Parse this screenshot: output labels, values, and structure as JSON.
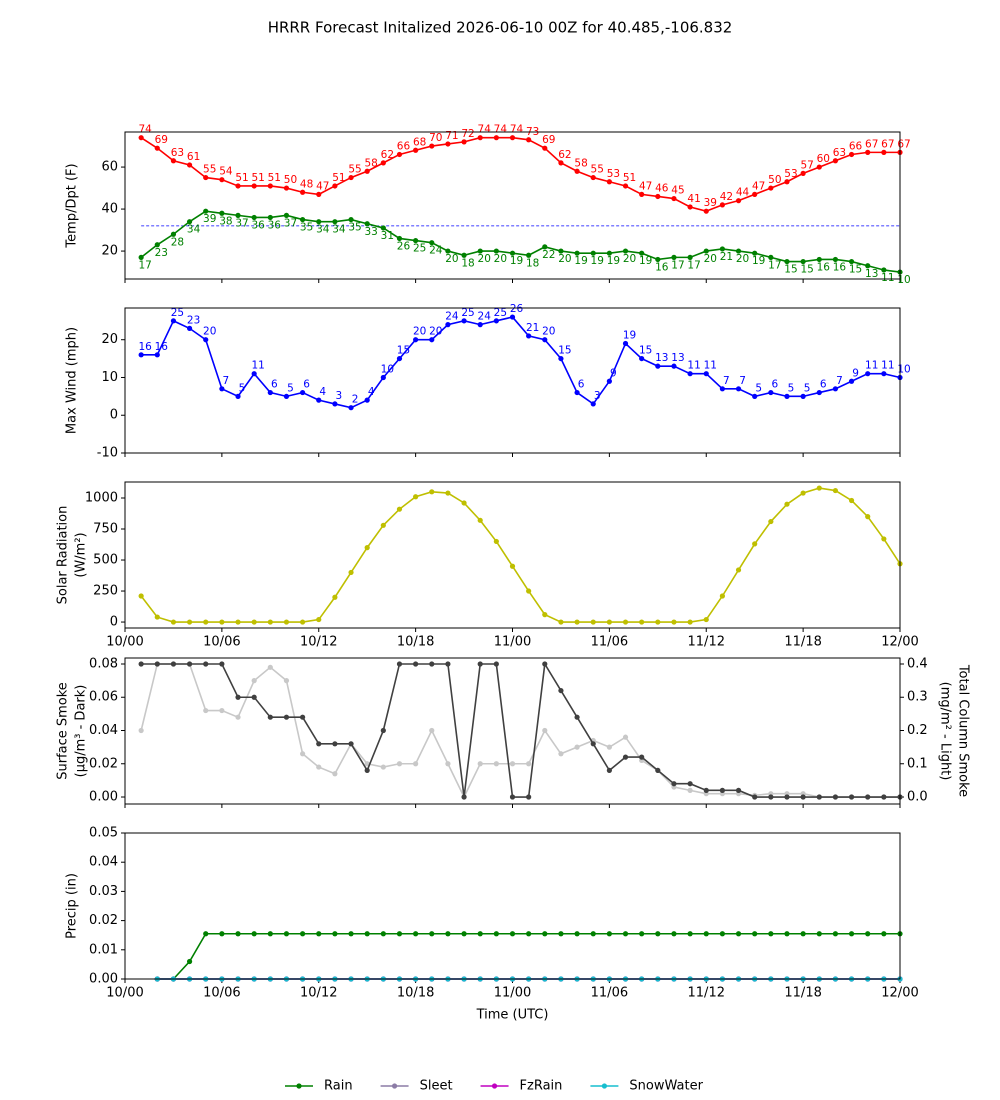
{
  "chart_data": [
    {
      "type": "line",
      "title": "HRRR Forecast Initalized 2026-06-10 00Z for 40.485,-106.832",
      "ylabel": [
        "Temp/Dpt (F)"
      ],
      "x": [
        1,
        2,
        3,
        4,
        5,
        6,
        7,
        8,
        9,
        10,
        11,
        12,
        13,
        14,
        15,
        16,
        17,
        18,
        19,
        20,
        21,
        22,
        23,
        24,
        25,
        26,
        27,
        28,
        29,
        30,
        31,
        32,
        33,
        34,
        35,
        36,
        37,
        38,
        39,
        40,
        41,
        42,
        43,
        44,
        45,
        46,
        47,
        48
      ],
      "xlim": [
        0,
        48
      ],
      "xticks": [
        0,
        6,
        12,
        18,
        24,
        30,
        36,
        42,
        48
      ],
      "ylim": [
        6.7,
        76.7
      ],
      "yticks": [
        20,
        40,
        60
      ],
      "data_labels": true,
      "hline": {
        "value": 32,
        "color": "#0000ff",
        "style": "dashed"
      },
      "series": [
        {
          "name": "Temp",
          "color": "#ff0000",
          "values": [
            74,
            69,
            63,
            61,
            55,
            54,
            51,
            51,
            51,
            50,
            48,
            47,
            51,
            55,
            58,
            62,
            66,
            68,
            70,
            71,
            72,
            74,
            74,
            74,
            73,
            69,
            62,
            58,
            55,
            53,
            51,
            47,
            46,
            45,
            41,
            39,
            42,
            44,
            47,
            50,
            53,
            57,
            60,
            63,
            66,
            67,
            67,
            67
          ]
        },
        {
          "name": "Dpt",
          "color": "#008000",
          "values": [
            17,
            23,
            28,
            34,
            39,
            38,
            37,
            36,
            36,
            37,
            35,
            34,
            34,
            35,
            33,
            31,
            26,
            25,
            24,
            20,
            18,
            20,
            20,
            19,
            18,
            22,
            20,
            19,
            19,
            19,
            20,
            19,
            16,
            17,
            17,
            20,
            21,
            20,
            19,
            17,
            15,
            15,
            16,
            16,
            15,
            13,
            11,
            10
          ]
        }
      ]
    },
    {
      "type": "line",
      "ylabel": [
        "Max Wind (mph)"
      ],
      "x": [
        1,
        2,
        3,
        4,
        5,
        6,
        7,
        8,
        9,
        10,
        11,
        12,
        13,
        14,
        15,
        16,
        17,
        18,
        19,
        20,
        21,
        22,
        23,
        24,
        25,
        26,
        27,
        28,
        29,
        30,
        31,
        32,
        33,
        34,
        35,
        36,
        37,
        38,
        39,
        40,
        41,
        42,
        43,
        44,
        45,
        46,
        47,
        48
      ],
      "xlim": [
        0,
        48
      ],
      "xticks": [
        0,
        6,
        12,
        18,
        24,
        30,
        36,
        42,
        48
      ],
      "ylim": [
        -10,
        28.4
      ],
      "yticks": [
        -10,
        0,
        10,
        20
      ],
      "data_labels": true,
      "series": [
        {
          "name": "Max Wind",
          "color": "#0000ff",
          "values": [
            16,
            16,
            25,
            23,
            20,
            7,
            5,
            11,
            6,
            5,
            6,
            4,
            3,
            2,
            4,
            10,
            15,
            20,
            20,
            24,
            25,
            24,
            25,
            26,
            21,
            20,
            15,
            6,
            3,
            9,
            19,
            15,
            13,
            13,
            11,
            11,
            7,
            7,
            5,
            6,
            5,
            5,
            6,
            7,
            9,
            11,
            11,
            10
          ]
        }
      ]
    },
    {
      "type": "line",
      "ylabel": [
        "Solar Radiation",
        "(W/m²)"
      ],
      "x": [
        1,
        2,
        3,
        4,
        5,
        6,
        7,
        8,
        9,
        10,
        11,
        12,
        13,
        14,
        15,
        16,
        17,
        18,
        19,
        20,
        21,
        22,
        23,
        24,
        25,
        26,
        27,
        28,
        29,
        30,
        31,
        32,
        33,
        34,
        35,
        36,
        37,
        38,
        39,
        40,
        41,
        42,
        43,
        44,
        45,
        46,
        47,
        48
      ],
      "xlim": [
        0,
        48
      ],
      "xticks": [
        {
          "value": 0,
          "label": "10/00"
        },
        {
          "value": 6,
          "label": "10/06"
        },
        {
          "value": 12,
          "label": "10/12"
        },
        {
          "value": 18,
          "label": "10/18"
        },
        {
          "value": 24,
          "label": "11/00"
        },
        {
          "value": 30,
          "label": "11/06"
        },
        {
          "value": 36,
          "label": "11/12"
        },
        {
          "value": 42,
          "label": "11/18"
        },
        {
          "value": 48,
          "label": "12/00"
        }
      ],
      "ylim": [
        -48,
        1129
      ],
      "yticks": [
        0,
        250,
        500,
        750,
        1000
      ],
      "series": [
        {
          "name": "Solar",
          "color": "#bfbf00",
          "values": [
            210,
            40,
            0,
            0,
            0,
            0,
            0,
            0,
            0,
            0,
            0,
            20,
            200,
            400,
            600,
            780,
            910,
            1010,
            1050,
            1040,
            960,
            820,
            650,
            450,
            250,
            60,
            0,
            0,
            0,
            0,
            0,
            0,
            0,
            0,
            0,
            20,
            210,
            420,
            630,
            810,
            950,
            1040,
            1080,
            1060,
            980,
            850,
            670,
            470
          ]
        }
      ]
    },
    {
      "type": "line",
      "ylabel": [
        "Surface Smoke",
        "(μg/m³ - Dark)"
      ],
      "y2label": [
        "Total Column Smoke",
        "(mg/m² - Light)"
      ],
      "x": [
        1,
        2,
        3,
        4,
        5,
        6,
        7,
        8,
        9,
        10,
        11,
        12,
        13,
        14,
        15,
        16,
        17,
        18,
        19,
        20,
        21,
        22,
        23,
        24,
        25,
        26,
        27,
        28,
        29,
        30,
        31,
        32,
        33,
        34,
        35,
        36,
        37,
        38,
        39,
        40,
        41,
        42,
        43,
        44,
        45,
        46,
        47,
        48
      ],
      "xlim": [
        0,
        48
      ],
      "xticks": [
        0,
        6,
        12,
        18,
        24,
        30,
        36,
        42,
        48
      ],
      "ylim": [
        -0.0042,
        0.0836
      ],
      "yticks": [
        {
          "value": 0,
          "label": "0.00"
        },
        {
          "value": 0.02,
          "label": "0.02"
        },
        {
          "value": 0.04,
          "label": "0.04"
        },
        {
          "value": 0.06,
          "label": "0.06"
        },
        {
          "value": 0.08,
          "label": "0.08"
        }
      ],
      "y2lim": [
        -0.021,
        0.418
      ],
      "y2ticks": [
        {
          "value": 0,
          "label": "0.0"
        },
        0.1,
        0.2,
        0.3,
        0.4
      ],
      "series": [
        {
          "name": "Total Column Smoke",
          "color": "#c8c8c8",
          "axis": "y2",
          "values": [
            0.2,
            0.4,
            0.4,
            0.4,
            0.26,
            0.26,
            0.24,
            0.35,
            0.39,
            0.35,
            0.13,
            0.09,
            0.07,
            0.16,
            0.1,
            0.09,
            0.1,
            0.1,
            0.2,
            0.1,
            0,
            0.1,
            0.1,
            0.1,
            0.1,
            0.2,
            0.13,
            0.15,
            0.17,
            0.15,
            0.18,
            0.11,
            0.08,
            0.03,
            0.02,
            0.01,
            0.01,
            0.01,
            0.005,
            0.01,
            0.01,
            0.01,
            0,
            0,
            0,
            0,
            0,
            0
          ]
        },
        {
          "name": "Surface Smoke",
          "color": "#404040",
          "values": [
            0.08,
            0.08,
            0.08,
            0.08,
            0.08,
            0.08,
            0.06,
            0.06,
            0.048,
            0.048,
            0.048,
            0.032,
            0.032,
            0.032,
            0.016,
            0.04,
            0.08,
            0.08,
            0.08,
            0.08,
            0,
            0.08,
            0.08,
            0,
            0,
            0.08,
            0.064,
            0.048,
            0.032,
            0.016,
            0.024,
            0.024,
            0.016,
            0.008,
            0.008,
            0.004,
            0.004,
            0.004,
            0,
            0,
            0,
            0,
            0,
            0,
            0,
            0,
            0,
            0
          ]
        }
      ]
    },
    {
      "type": "line",
      "ylabel": [
        "Precip (in)"
      ],
      "xlabel": "Time (UTC)",
      "legend": "bottom",
      "x": [
        1,
        2,
        3,
        4,
        5,
        6,
        7,
        8,
        9,
        10,
        11,
        12,
        13,
        14,
        15,
        16,
        17,
        18,
        19,
        20,
        21,
        22,
        23,
        24,
        25,
        26,
        27,
        28,
        29,
        30,
        31,
        32,
        33,
        34,
        35,
        36,
        37,
        38,
        39,
        40,
        41,
        42,
        43,
        44,
        45,
        46,
        47,
        48
      ],
      "xlim": [
        0,
        48
      ],
      "xticks": [
        {
          "value": 0,
          "label": "10/00"
        },
        {
          "value": 6,
          "label": "10/06"
        },
        {
          "value": 12,
          "label": "10/12"
        },
        {
          "value": 18,
          "label": "10/18"
        },
        {
          "value": 24,
          "label": "11/00"
        },
        {
          "value": 30,
          "label": "11/06"
        },
        {
          "value": 36,
          "label": "11/12"
        },
        {
          "value": 42,
          "label": "11/18"
        },
        {
          "value": 48,
          "label": "12/00"
        }
      ],
      "ylim": [
        0,
        0.05
      ],
      "yticks": [
        {
          "value": 0,
          "label": "0.00"
        },
        {
          "value": 0.01,
          "label": "0.01"
        },
        {
          "value": 0.02,
          "label": "0.02"
        },
        {
          "value": 0.03,
          "label": "0.03"
        },
        {
          "value": 0.04,
          "label": "0.04"
        },
        {
          "value": 0.05,
          "label": "0.05"
        }
      ],
      "series": [
        {
          "name": "Rain",
          "color": "#008000",
          "values": [
            null,
            0,
            0,
            0.006,
            0.0155,
            0.0155,
            0.0155,
            0.0155,
            0.0155,
            0.0155,
            0.0155,
            0.0155,
            0.0155,
            0.0155,
            0.0155,
            0.0155,
            0.0155,
            0.0155,
            0.0155,
            0.0155,
            0.0155,
            0.0155,
            0.0155,
            0.0155,
            0.0155,
            0.0155,
            0.0155,
            0.0155,
            0.0155,
            0.0155,
            0.0155,
            0.0155,
            0.0155,
            0.0155,
            0.0155,
            0.0155,
            0.0155,
            0.0155,
            0.0155,
            0.0155,
            0.0155,
            0.0155,
            0.0155,
            0.0155,
            0.0155,
            0.0155,
            0.0155,
            0.0155
          ]
        },
        {
          "name": "Sleet",
          "color": "#8c7ca6",
          "values": [
            null,
            0,
            0,
            0,
            0,
            0,
            0,
            0,
            0,
            0,
            0,
            0,
            0,
            0,
            0,
            0,
            0,
            0,
            0,
            0,
            0,
            0,
            0,
            0,
            0,
            0,
            0,
            0,
            0,
            0,
            0,
            0,
            0,
            0,
            0,
            0,
            0,
            0,
            0,
            0,
            0,
            0,
            0,
            0,
            0,
            0,
            0,
            0
          ]
        },
        {
          "name": "FzRain",
          "color": "#c000c0",
          "values": [
            null,
            0,
            0,
            0,
            0,
            0,
            0,
            0,
            0,
            0,
            0,
            0,
            0,
            0,
            0,
            0,
            0,
            0,
            0,
            0,
            0,
            0,
            0,
            0,
            0,
            0,
            0,
            0,
            0,
            0,
            0,
            0,
            0,
            0,
            0,
            0,
            0,
            0,
            0,
            0,
            0,
            0,
            0,
            0,
            0,
            0,
            0,
            0
          ]
        },
        {
          "name": "SnowWater",
          "color": "#17becf",
          "values": [
            null,
            0,
            0,
            0,
            0,
            0,
            0,
            0,
            0,
            0,
            0,
            0,
            0,
            0,
            0,
            0,
            0,
            0,
            0,
            0,
            0,
            0,
            0,
            0,
            0,
            0,
            0,
            0,
            0,
            0,
            0,
            0,
            0,
            0,
            0,
            0,
            0,
            0,
            0,
            0,
            0,
            0,
            0,
            0,
            0,
            0,
            0,
            0
          ]
        }
      ]
    }
  ]
}
